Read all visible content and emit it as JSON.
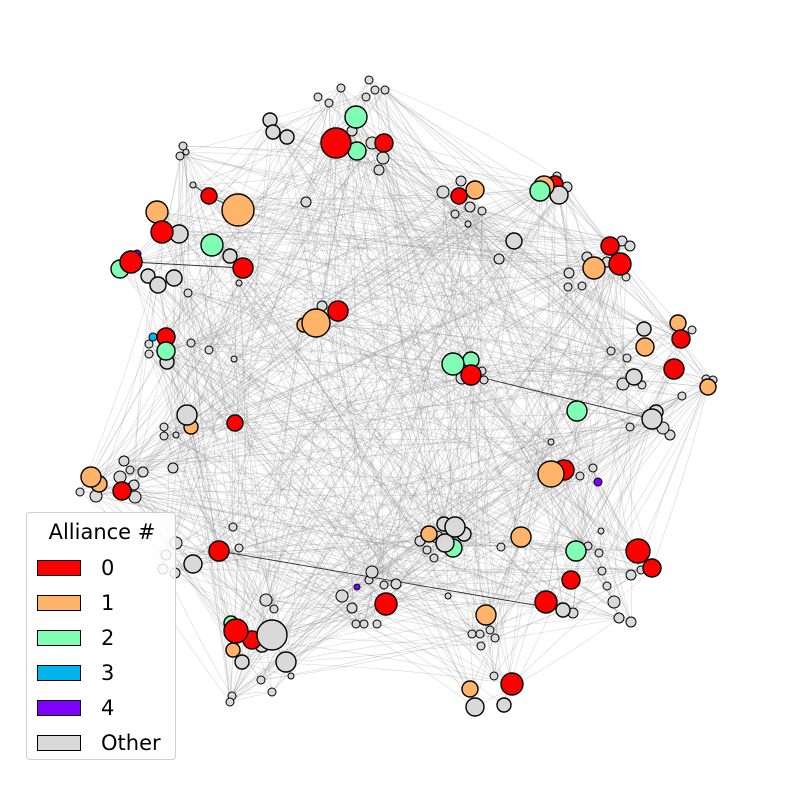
{
  "legend": {
    "title": "Alliance #",
    "entries": [
      {
        "label": "0",
        "color": "#ff0000"
      },
      {
        "label": "1",
        "color": "#ffb469"
      },
      {
        "label": "2",
        "color": "#80ffb4"
      },
      {
        "label": "3",
        "color": "#00b5eb"
      },
      {
        "label": "4",
        "color": "#8000ff"
      },
      {
        "label": "Other",
        "color": "#d9d9d9"
      }
    ]
  },
  "colors": {
    "edge": "#8c8c8c",
    "node_outline": "#000000"
  }
}
